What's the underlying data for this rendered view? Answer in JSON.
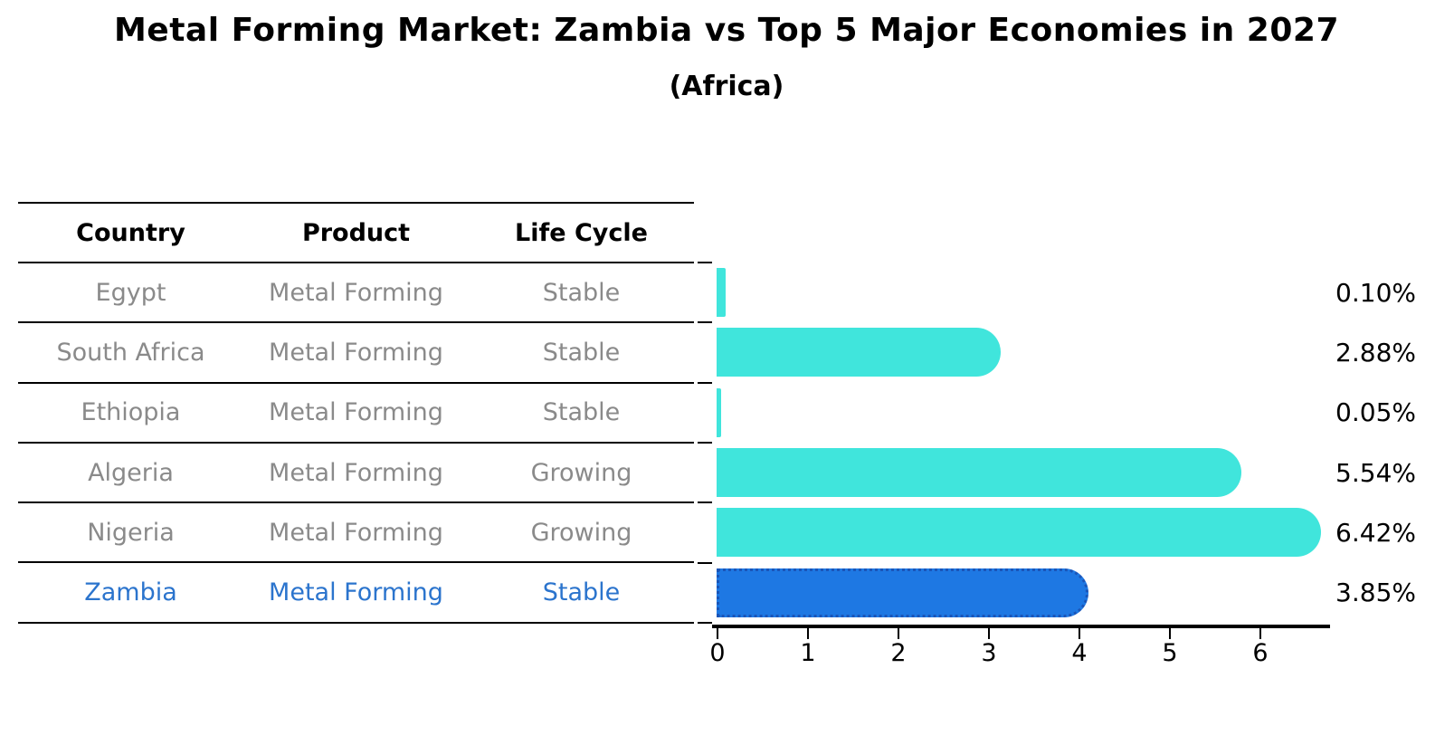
{
  "title": "Metal Forming Market: Zambia vs Top 5 Major Economies in 2027",
  "subtitle": "(Africa)",
  "table": {
    "headers": [
      "Country",
      "Product",
      "Life Cycle"
    ],
    "rows": [
      {
        "country": "Egypt",
        "product": "Metal Forming",
        "life_cycle": "Stable",
        "highlight": false
      },
      {
        "country": "South Africa",
        "product": "Metal Forming",
        "life_cycle": "Stable",
        "highlight": false
      },
      {
        "country": "Ethiopia",
        "product": "Metal Forming",
        "life_cycle": "Stable",
        "highlight": false
      },
      {
        "country": "Algeria",
        "product": "Metal Forming",
        "life_cycle": "Growing",
        "highlight": false
      },
      {
        "country": "Nigeria",
        "product": "Metal Forming",
        "life_cycle": "Growing",
        "highlight": false
      },
      {
        "country": "Zambia",
        "product": "Metal Forming",
        "life_cycle": "Stable",
        "highlight": true
      }
    ]
  },
  "chart_data": {
    "type": "bar",
    "orientation": "horizontal",
    "categories": [
      "Egypt",
      "South Africa",
      "Ethiopia",
      "Algeria",
      "Nigeria",
      "Zambia"
    ],
    "values": [
      0.1,
      2.88,
      0.05,
      5.54,
      6.42,
      3.85
    ],
    "value_labels": [
      "0.10%",
      "2.88%",
      "0.05%",
      "5.54%",
      "6.42%",
      "3.85%"
    ],
    "highlight_index": 5,
    "x_ticks": [
      0,
      1,
      2,
      3,
      4,
      5,
      6
    ],
    "xlim": [
      0,
      6.8
    ],
    "grid": false,
    "legend": "none"
  },
  "colors": {
    "background": "#ffffff",
    "text": "#000000",
    "muted_text": "#8a8a8a",
    "highlight_text": "#2b74cd",
    "bar": "#40e5dc",
    "highlight_bar": "#1e78e3",
    "highlight_bar_border": "#1a55b8",
    "axis": "#000000"
  }
}
